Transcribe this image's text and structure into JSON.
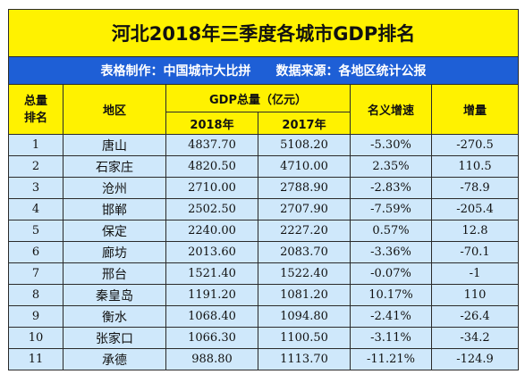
{
  "title": "河北2018年三季度各城市GDP排名",
  "maker": "表格制作：中国城市大比拼",
  "source": "数据来源：各地区统计公报",
  "headers": {
    "rank": "总量排名",
    "region": "地区",
    "gdp_total": "GDP总量（亿元）",
    "year_2018": "2018年",
    "year_2017": "2017年",
    "nominal_growth": "名义增速",
    "increase": "增量"
  },
  "rows": [
    {
      "rank": "1",
      "city": "唐山",
      "gdp2018": "4837.70",
      "gdp2017": "5108.20",
      "growth": "-5.30%",
      "increase": "-270.5"
    },
    {
      "rank": "2",
      "city": "石家庄",
      "gdp2018": "4820.50",
      "gdp2017": "4710.00",
      "growth": "2.35%",
      "increase": "110.5"
    },
    {
      "rank": "3",
      "city": "沧州",
      "gdp2018": "2710.00",
      "gdp2017": "2788.90",
      "growth": "-2.83%",
      "increase": "-78.9"
    },
    {
      "rank": "4",
      "city": "邯郸",
      "gdp2018": "2502.50",
      "gdp2017": "2707.90",
      "growth": "-7.59%",
      "increase": "-205.4"
    },
    {
      "rank": "5",
      "city": "保定",
      "gdp2018": "2240.00",
      "gdp2017": "2227.20",
      "growth": "0.57%",
      "increase": "12.8"
    },
    {
      "rank": "6",
      "city": "廊坊",
      "gdp2018": "2013.60",
      "gdp2017": "2083.70",
      "growth": "-3.36%",
      "increase": "-70.1"
    },
    {
      "rank": "7",
      "city": "邢台",
      "gdp2018": "1521.40",
      "gdp2017": "1522.40",
      "growth": "-0.07%",
      "increase": "-1"
    },
    {
      "rank": "8",
      "city": "秦皇岛",
      "gdp2018": "1191.20",
      "gdp2017": "1081.20",
      "growth": "10.17%",
      "increase": "110"
    },
    {
      "rank": "9",
      "city": "衡水",
      "gdp2018": "1068.40",
      "gdp2017": "1094.80",
      "growth": "-2.41%",
      "increase": "-26.4"
    },
    {
      "rank": "10",
      "city": "张家口",
      "gdp2018": "1066.30",
      "gdp2017": "1100.50",
      "growth": "-3.11%",
      "increase": "-34.2"
    },
    {
      "rank": "11",
      "city": "承德",
      "gdp2018": "988.80",
      "gdp2017": "1113.70",
      "growth": "-11.21%",
      "increase": "-124.9"
    }
  ]
}
